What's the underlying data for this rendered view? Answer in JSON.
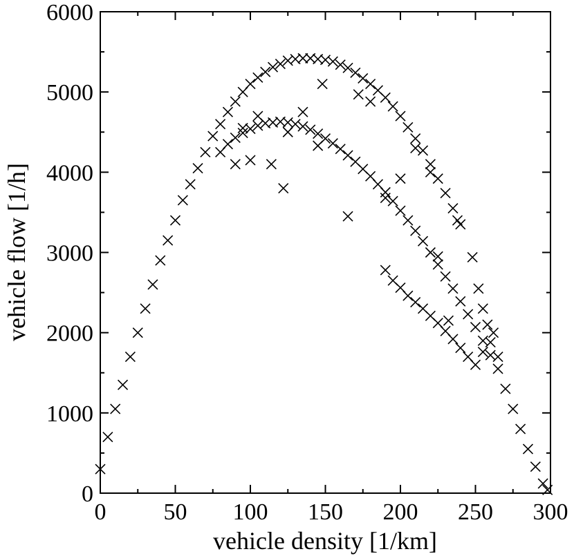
{
  "chart_data": {
    "type": "scatter",
    "title": "",
    "xlabel": "vehicle density [1/km]",
    "ylabel": "vehicle flow [1/h]",
    "xlim": [
      0,
      300
    ],
    "ylim": [
      0,
      6000
    ],
    "xticks": [
      0,
      50,
      100,
      150,
      200,
      250,
      300
    ],
    "yticks": [
      0,
      1000,
      2000,
      3000,
      4000,
      5000,
      6000
    ],
    "grid": false,
    "legend": "none",
    "marker": "x",
    "marker_color": "#000000",
    "series": [
      {
        "x": [
          0,
          5,
          10,
          15,
          20,
          25,
          30,
          35,
          40,
          45,
          50,
          55,
          60,
          65,
          70,
          75,
          80,
          85,
          90,
          95,
          100,
          105,
          110,
          115,
          120,
          125,
          130,
          135,
          140,
          145,
          150,
          155,
          160,
          165,
          170,
          175,
          180,
          185,
          190,
          195,
          200,
          205,
          210,
          215,
          220,
          225,
          230,
          235,
          240
        ],
        "y": [
          300,
          700,
          1050,
          1350,
          1700,
          2000,
          2300,
          2600,
          2900,
          3150,
          3400,
          3650,
          3850,
          4050,
          4250,
          4450,
          4600,
          4750,
          4880,
          5000,
          5100,
          5180,
          5250,
          5310,
          5350,
          5390,
          5410,
          5420,
          5420,
          5410,
          5400,
          5380,
          5340,
          5300,
          5240,
          5170,
          5100,
          5020,
          4930,
          4820,
          4700,
          4560,
          4420,
          4270,
          4100,
          3920,
          3740,
          3550,
          3350
        ]
      },
      {
        "x": [
          80,
          85,
          90,
          95,
          100,
          105,
          110,
          115,
          120,
          125,
          130,
          135,
          140,
          145,
          150,
          155,
          160,
          165,
          170,
          175,
          180,
          185,
          190,
          195,
          200,
          205,
          210,
          215,
          220,
          225,
          230,
          235,
          240,
          245,
          250,
          255,
          260,
          265,
          270,
          275,
          280,
          285,
          290,
          295,
          298
        ],
        "y": [
          4250,
          4350,
          4430,
          4490,
          4540,
          4580,
          4610,
          4620,
          4630,
          4620,
          4600,
          4570,
          4530,
          4480,
          4420,
          4360,
          4290,
          4210,
          4130,
          4040,
          3950,
          3850,
          3750,
          3640,
          3520,
          3400,
          3270,
          3140,
          3000,
          2850,
          2700,
          2550,
          2390,
          2230,
          2070,
          1900,
          1720,
          1550,
          1300,
          1050,
          800,
          550,
          330,
          120,
          40
        ]
      },
      {
        "x": [
          190,
          195,
          200,
          205,
          210,
          215,
          220,
          225,
          230,
          235,
          240,
          245,
          250,
          255,
          260,
          265
        ],
        "y": [
          2780,
          2650,
          2560,
          2460,
          2380,
          2300,
          2210,
          2120,
          2020,
          1920,
          1810,
          1700,
          1600,
          1760,
          1880,
          1700
        ]
      },
      {
        "x": [
          90,
          95,
          100,
          105,
          114,
          122,
          125,
          135,
          145,
          148,
          165,
          172,
          180,
          190,
          200,
          210,
          220,
          225,
          232,
          238,
          248,
          252,
          255,
          258,
          262
        ],
        "y": [
          4100,
          4550,
          4150,
          4700,
          4100,
          3800,
          4500,
          4750,
          4330,
          5100,
          3450,
          4970,
          4880,
          3680,
          3920,
          4300,
          4000,
          2950,
          2150,
          3400,
          2940,
          2550,
          2300,
          2100,
          2000
        ]
      }
    ]
  }
}
